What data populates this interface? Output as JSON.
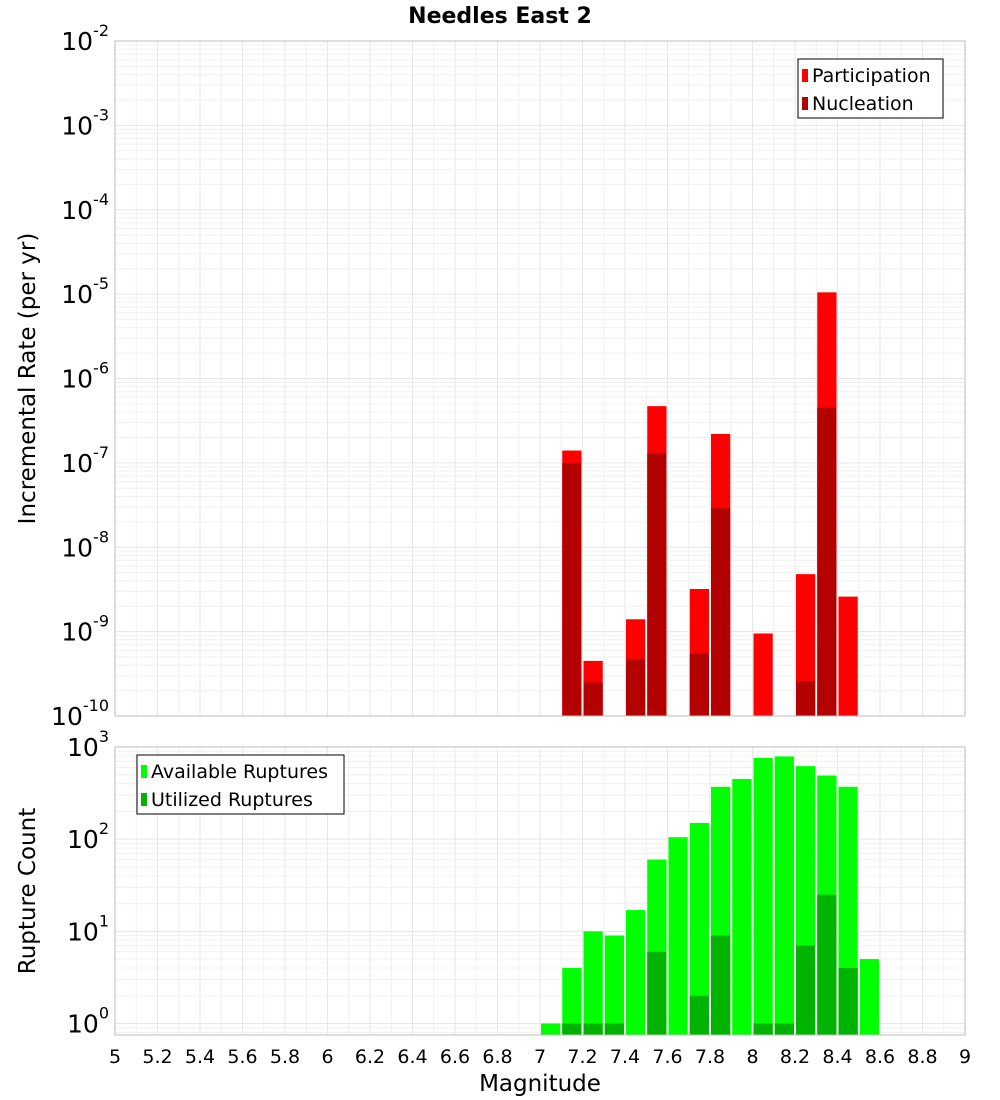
{
  "chart_data": [
    {
      "type": "bar",
      "title": "Needles East 2",
      "xlabel": "",
      "ylabel": "Incremental Rate (per yr)",
      "yscale": "log",
      "ylim": [
        1e-10,
        0.01
      ],
      "xlim": [
        5,
        9
      ],
      "grid": true,
      "legend_position": "top-right",
      "y_tick_labels": [
        {
          "base": "10",
          "exp": "-10"
        },
        {
          "base": "10",
          "exp": "-9"
        },
        {
          "base": "10",
          "exp": "-8"
        },
        {
          "base": "10",
          "exp": "-7"
        },
        {
          "base": "10",
          "exp": "-6"
        },
        {
          "base": "10",
          "exp": "-5"
        },
        {
          "base": "10",
          "exp": "-4"
        },
        {
          "base": "10",
          "exp": "-3"
        },
        {
          "base": "10",
          "exp": "-2"
        }
      ],
      "series": [
        {
          "name": "Participation",
          "color": "#ff0000",
          "x": [
            7.15,
            7.25,
            7.45,
            7.55,
            7.75,
            7.85,
            8.05,
            8.25,
            8.35,
            8.45
          ],
          "values": [
            1.4e-07,
            4.5e-10,
            1.4e-09,
            4.7e-07,
            3.2e-09,
            2.2e-07,
            9.5e-10,
            4.8e-09,
            1.05e-05,
            2.6e-09
          ]
        },
        {
          "name": "Nucleation",
          "color": "#b30000",
          "x": [
            7.15,
            7.25,
            7.45,
            7.55,
            7.75,
            7.85,
            8.25,
            8.35
          ],
          "values": [
            1e-07,
            2.5e-10,
            4.7e-10,
            1.3e-07,
            5.5e-10,
            2.9e-08,
            2.6e-10,
            4.5e-07
          ]
        }
      ]
    },
    {
      "type": "bar",
      "title": "",
      "xlabel": "Magnitude",
      "ylabel": "Rupture Count",
      "yscale": "log",
      "ylim": [
        0.75,
        1000
      ],
      "xlim": [
        5,
        9
      ],
      "grid": true,
      "legend_position": "top-left",
      "x_tick_labels": [
        "5",
        "5.2",
        "5.4",
        "5.6",
        "5.8",
        "6",
        "6.2",
        "6.4",
        "6.6",
        "6.8",
        "7",
        "7.2",
        "7.4",
        "7.6",
        "7.8",
        "8",
        "8.2",
        "8.4",
        "8.6",
        "8.8",
        "9"
      ],
      "y_tick_labels": [
        {
          "base": "10",
          "exp": "0"
        },
        {
          "base": "10",
          "exp": "1"
        },
        {
          "base": "10",
          "exp": "2"
        },
        {
          "base": "10",
          "exp": "3"
        }
      ],
      "series": [
        {
          "name": "Available Ruptures",
          "color": "#00ff00",
          "x": [
            7.05,
            7.15,
            7.25,
            7.35,
            7.45,
            7.55,
            7.65,
            7.75,
            7.85,
            7.95,
            8.05,
            8.15,
            8.25,
            8.35,
            8.45,
            8.55
          ],
          "values": [
            1,
            4,
            10,
            9,
            17,
            60,
            105,
            150,
            370,
            450,
            760,
            790,
            620,
            490,
            370,
            5
          ]
        },
        {
          "name": "Utilized Ruptures",
          "color": "#00b300",
          "x": [
            7.15,
            7.25,
            7.35,
            7.55,
            7.75,
            7.85,
            8.05,
            8.15,
            8.25,
            8.35,
            8.45
          ],
          "values": [
            1,
            1,
            1,
            6,
            2,
            9,
            1,
            1,
            7,
            25,
            4
          ]
        }
      ]
    }
  ]
}
